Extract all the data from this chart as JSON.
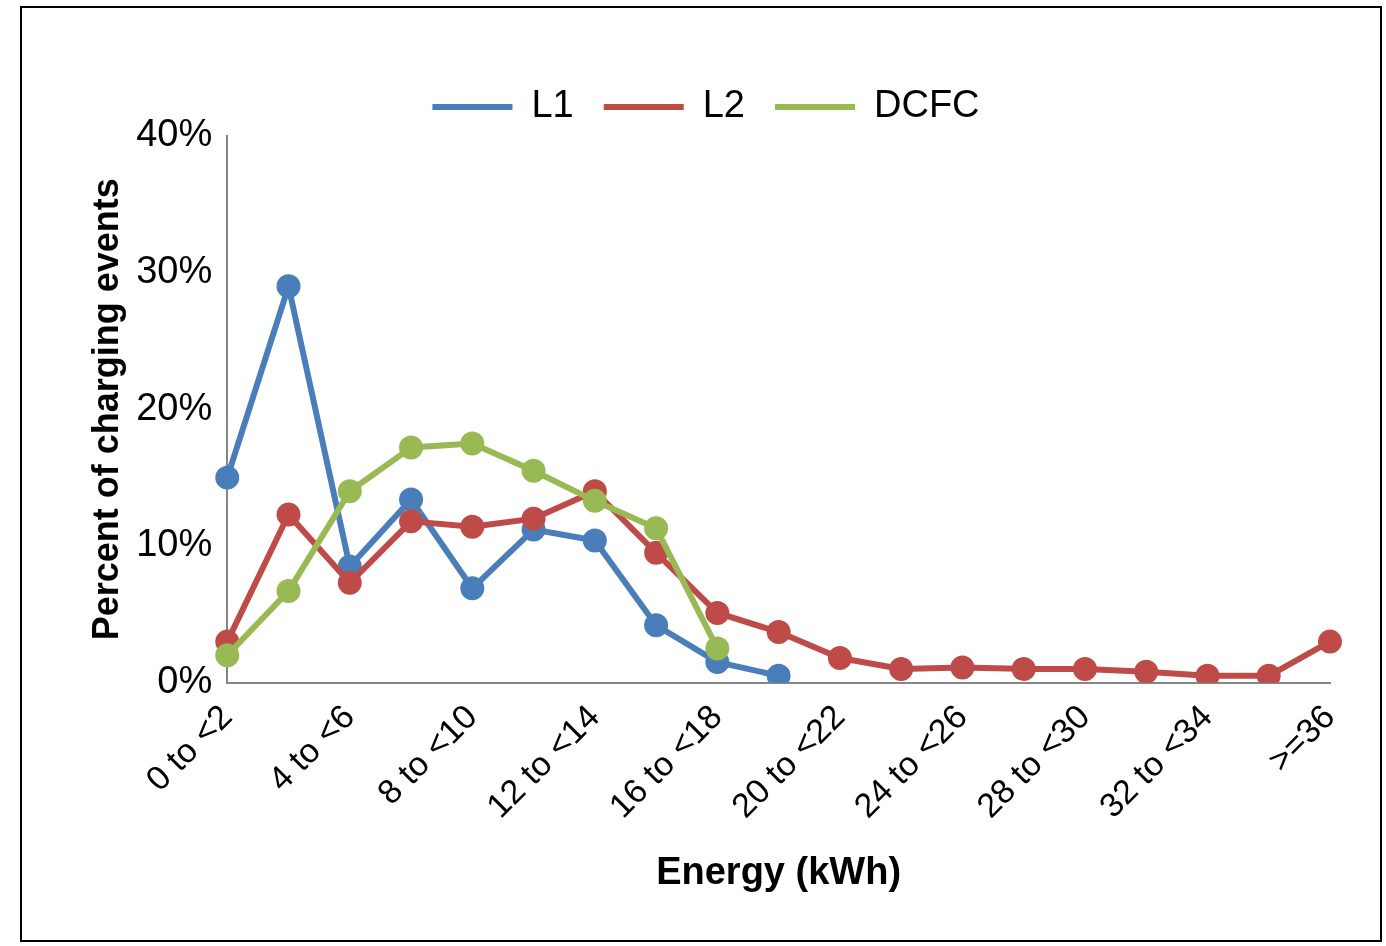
{
  "chart_data": {
    "type": "line",
    "xlabel": "Energy (kWh)",
    "ylabel": "Percent of charging events",
    "categories": [
      "0 to <2",
      null,
      "4 to <6",
      null,
      "8 to <10",
      null,
      "12 to <14",
      null,
      "16 to <18",
      null,
      "20 to <22",
      null,
      "24 to <26",
      null,
      "28 to <30",
      null,
      "32 to <34",
      null,
      ">=36"
    ],
    "series": [
      {
        "name": "L1",
        "color": "#4a7ebb",
        "values": [
          15,
          29,
          8.5,
          13.4,
          6.9,
          11.2,
          10.4,
          4.2,
          1.5,
          0.5,
          null,
          null,
          null,
          null,
          null,
          null,
          null,
          null,
          null
        ]
      },
      {
        "name": "L2",
        "color": "#be4b48",
        "values": [
          3,
          12.3,
          7.3,
          11.8,
          11.4,
          12,
          14,
          9.5,
          5.1,
          3.7,
          1.8,
          1,
          1.1,
          1,
          1,
          0.8,
          0.5,
          0.5,
          3
        ]
      },
      {
        "name": "DCFC",
        "color": "#98b954",
        "values": [
          2,
          6.7,
          14,
          17.2,
          17.5,
          15.5,
          13.3,
          11.3,
          2.5,
          null,
          null,
          null,
          null,
          null,
          null,
          null,
          null,
          null,
          null
        ]
      }
    ],
    "ylim": [
      0,
      40
    ],
    "yticks": [
      {
        "value": 0,
        "label": "0%"
      },
      {
        "value": 10,
        "label": "10%"
      },
      {
        "value": 20,
        "label": "20%"
      },
      {
        "value": 30,
        "label": "30%"
      },
      {
        "value": 40,
        "label": "40%"
      }
    ],
    "grid": false,
    "legend": "top",
    "marker": "circle",
    "line_style": "solid"
  }
}
